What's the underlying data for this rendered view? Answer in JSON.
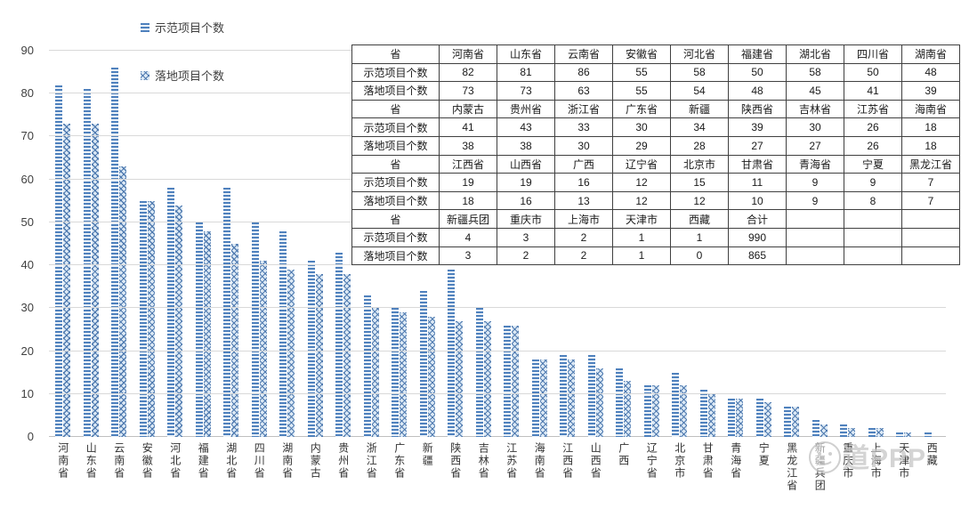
{
  "legend": {
    "series1_label": "示范项目个数",
    "series2_label": "落地项目个数"
  },
  "colors": {
    "bar_demo_stripe": "#4f81bd",
    "bar_demo_gap": "#eaf1f8",
    "bar_landed_bg": "#dce9f5",
    "bar_landed_cross": "#4a76ad",
    "gridline": "#d9d9d9",
    "axis_text": "#404040",
    "table_border": "#404040",
    "watermark_gray": "#c0c0c0"
  },
  "chart_data": {
    "type": "bar",
    "title": "",
    "xlabel": "",
    "ylabel": "",
    "ylim": [
      0,
      90
    ],
    "yticks": [
      0,
      10,
      20,
      30,
      40,
      50,
      60,
      70,
      80,
      90
    ],
    "grid": true,
    "legend_position": "top-left",
    "categories": [
      "河南省",
      "山东省",
      "云南省",
      "安徽省",
      "河北省",
      "福建省",
      "湖北省",
      "四川省",
      "湖南省",
      "内蒙古",
      "贵州省",
      "浙江省",
      "广东省",
      "新疆",
      "陕西省",
      "吉林省",
      "江苏省",
      "海南省",
      "江西省",
      "山西省",
      "广西",
      "辽宁省",
      "北京市",
      "甘肃省",
      "青海省",
      "宁夏",
      "黑龙江省",
      "新疆兵团",
      "重庆市",
      "上海市",
      "天津市",
      "西藏"
    ],
    "series": [
      {
        "name": "示范项目个数",
        "values": [
          82,
          81,
          86,
          55,
          58,
          50,
          58,
          50,
          48,
          41,
          43,
          33,
          30,
          34,
          39,
          30,
          26,
          18,
          19,
          19,
          16,
          12,
          15,
          11,
          9,
          9,
          7,
          4,
          3,
          2,
          1,
          1
        ]
      },
      {
        "name": "落地项目个数",
        "values": [
          73,
          73,
          63,
          55,
          54,
          48,
          45,
          41,
          39,
          38,
          38,
          30,
          29,
          28,
          27,
          27,
          26,
          18,
          18,
          16,
          13,
          12,
          12,
          10,
          9,
          8,
          7,
          3,
          2,
          2,
          1,
          0
        ]
      }
    ]
  },
  "table": {
    "row_labels": {
      "province": "省",
      "series1": "示范项目个数",
      "series2": "落地项目个数"
    },
    "groups": [
      {
        "provinces": [
          "河南省",
          "山东省",
          "云南省",
          "安徽省",
          "河北省",
          "福建省",
          "湖北省",
          "四川省",
          "湖南省"
        ],
        "demo": [
          "82",
          "81",
          "86",
          "55",
          "58",
          "50",
          "58",
          "50",
          "48"
        ],
        "landed": [
          "73",
          "73",
          "63",
          "55",
          "54",
          "48",
          "45",
          "41",
          "39"
        ]
      },
      {
        "provinces": [
          "内蒙古",
          "贵州省",
          "浙江省",
          "广东省",
          "新疆",
          "陕西省",
          "吉林省",
          "江苏省",
          "海南省"
        ],
        "demo": [
          "41",
          "43",
          "33",
          "30",
          "34",
          "39",
          "30",
          "26",
          "18"
        ],
        "landed": [
          "38",
          "38",
          "30",
          "29",
          "28",
          "27",
          "27",
          "26",
          "18"
        ]
      },
      {
        "provinces": [
          "江西省",
          "山西省",
          "广西",
          "辽宁省",
          "北京市",
          "甘肃省",
          "青海省",
          "宁夏",
          "黑龙江省"
        ],
        "demo": [
          "19",
          "19",
          "16",
          "12",
          "15",
          "11",
          "9",
          "9",
          "7"
        ],
        "landed": [
          "18",
          "16",
          "13",
          "12",
          "12",
          "10",
          "9",
          "8",
          "7"
        ]
      },
      {
        "provinces": [
          "新疆兵团",
          "重庆市",
          "上海市",
          "天津市",
          "西藏",
          "合计",
          "",
          "",
          ""
        ],
        "demo": [
          "4",
          "3",
          "2",
          "1",
          "1",
          "990",
          "",
          "",
          ""
        ],
        "landed": [
          "3",
          "2",
          "2",
          "1",
          "0",
          "865",
          "",
          "",
          ""
        ]
      }
    ]
  },
  "watermark": {
    "text": "道PPP"
  }
}
